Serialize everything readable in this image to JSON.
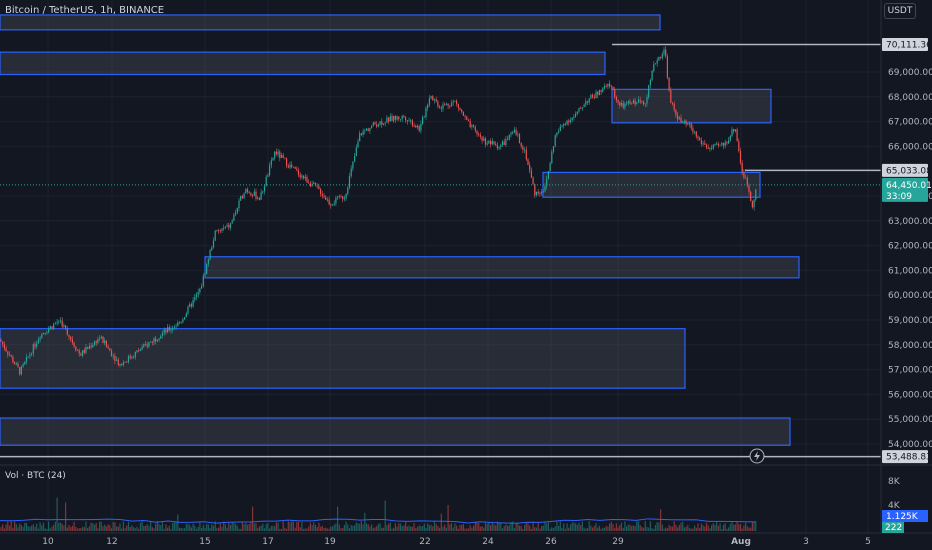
{
  "header": {
    "symbol_title": "Bitcoin / TetherUS, 1h, BINANCE",
    "currency_button": "USDT"
  },
  "volume_pane": {
    "title": "Vol · BTC (24)",
    "axis_labels": [
      "8K",
      "4K"
    ],
    "last_volume_tag": "1.125K",
    "ma_tag": "222"
  },
  "price_axis": {
    "labels": [
      "69,000.00",
      "68,000.00",
      "67,000.00",
      "66,000.00",
      "64,000.00",
      "63,000.00",
      "62,000.00",
      "61,000.00",
      "60,000.00",
      "59,000.00",
      "58,000.00",
      "57,000.00",
      "56,000.00",
      "55,000.00",
      "54,000.00"
    ],
    "tags": {
      "high": "70,111.36",
      "level": "65,033.08",
      "current_price": "64,450.01",
      "countdown": "33:09",
      "low": "53,488.83"
    }
  },
  "time_axis": {
    "labels": [
      "10",
      "12",
      "15",
      "17",
      "19",
      "22",
      "24",
      "26",
      "29",
      "Aug",
      "3",
      "5"
    ]
  },
  "colors": {
    "background": "#131722",
    "up": "#26a69a",
    "down": "#ef5350",
    "zone_border": "#2962ff",
    "current_price_tag": "#26a69a",
    "volume_tag": "#2962ff"
  },
  "chart_data": {
    "type": "candlestick",
    "symbol": "Bitcoin / TetherUS",
    "interval": "1h",
    "exchange": "BINANCE",
    "ylim": [
      53400,
      70300
    ],
    "x_ticks": [
      "10",
      "12",
      "15",
      "17",
      "19",
      "22",
      "24",
      "26",
      "29",
      "Aug",
      "3",
      "5"
    ],
    "path_points": [
      [
        0,
        58200
      ],
      [
        20,
        56900
      ],
      [
        40,
        58400
      ],
      [
        60,
        59000
      ],
      [
        80,
        57600
      ],
      [
        100,
        58300
      ],
      [
        120,
        57200
      ],
      [
        140,
        57800
      ],
      [
        160,
        58400
      ],
      [
        180,
        58900
      ],
      [
        200,
        60200
      ],
      [
        215,
        62500
      ],
      [
        230,
        62800
      ],
      [
        245,
        64300
      ],
      [
        260,
        63900
      ],
      [
        275,
        65800
      ],
      [
        290,
        65200
      ],
      [
        305,
        64700
      ],
      [
        320,
        64200
      ],
      [
        330,
        63700
      ],
      [
        345,
        64000
      ],
      [
        360,
        66500
      ],
      [
        375,
        66900
      ],
      [
        390,
        67100
      ],
      [
        405,
        67200
      ],
      [
        420,
        66700
      ],
      [
        430,
        68100
      ],
      [
        440,
        67600
      ],
      [
        455,
        67800
      ],
      [
        470,
        66800
      ],
      [
        485,
        66200
      ],
      [
        500,
        66000
      ],
      [
        515,
        66600
      ],
      [
        525,
        65800
      ],
      [
        535,
        64100
      ],
      [
        545,
        64300
      ],
      [
        555,
        66400
      ],
      [
        565,
        67000
      ],
      [
        575,
        67200
      ],
      [
        585,
        67800
      ],
      [
        600,
        68200
      ],
      [
        610,
        68500
      ],
      [
        620,
        67600
      ],
      [
        635,
        67800
      ],
      [
        645,
        67800
      ],
      [
        655,
        69400
      ],
      [
        665,
        69900
      ],
      [
        670,
        67800
      ],
      [
        680,
        67000
      ],
      [
        690,
        66800
      ],
      [
        700,
        66200
      ],
      [
        710,
        65900
      ],
      [
        725,
        66100
      ],
      [
        735,
        66800
      ],
      [
        742,
        65000
      ],
      [
        748,
        64400
      ],
      [
        752,
        63600
      ],
      [
        757,
        64450
      ]
    ],
    "zones": [
      {
        "x0": 0,
        "x1": 660,
        "y_top": 71300,
        "y_bottom": 70700
      },
      {
        "x0": 0,
        "x1": 605,
        "y_top": 69800,
        "y_bottom": 68900
      },
      {
        "x0": 612,
        "x1": 771,
        "y_top": 68300,
        "y_bottom": 66950
      },
      {
        "x0": 543,
        "x1": 760,
        "y_top": 64950,
        "y_bottom": 63950
      },
      {
        "x0": 205,
        "x1": 799,
        "y_top": 61550,
        "y_bottom": 60700
      },
      {
        "x0": 0,
        "x1": 685,
        "y_top": 58650,
        "y_bottom": 56250
      },
      {
        "x0": 0,
        "x1": 790,
        "y_top": 55050,
        "y_bottom": 53950
      }
    ],
    "levels": [
      {
        "x0": 612,
        "value": 70111.36
      },
      {
        "x0": 745,
        "value": 65033.08
      },
      {
        "x0": 0,
        "value": 53488.83
      }
    ],
    "current_price": 64450.01
  }
}
